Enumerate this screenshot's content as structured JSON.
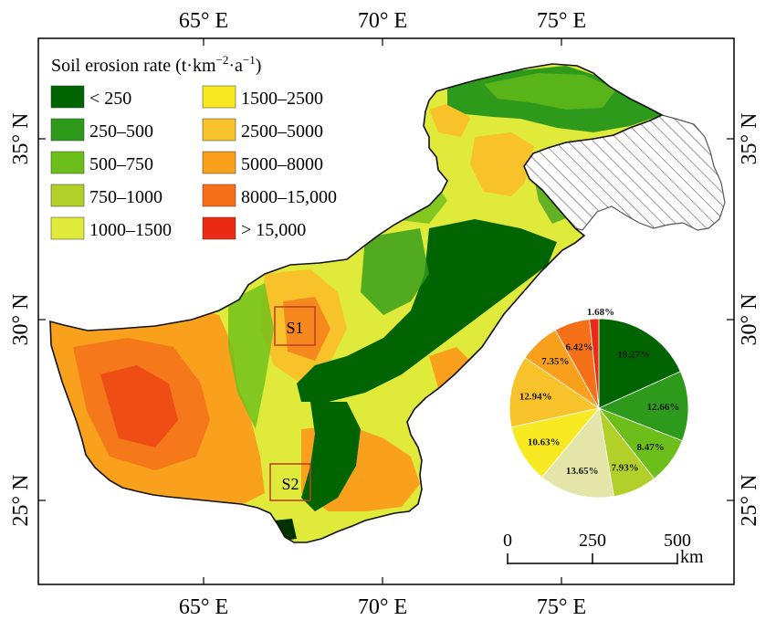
{
  "axes": {
    "top_ticks": [
      "65° E",
      "70° E",
      "75° E"
    ],
    "bottom_ticks": [
      "65° E",
      "70° E",
      "75° E"
    ],
    "left_ticks": [
      "35° N",
      "30° N",
      "25° N"
    ],
    "right_ticks": [
      "35° N",
      "30° N",
      "25° N"
    ]
  },
  "legend": {
    "title_prefix": "Soil erosion rate (t·km",
    "title_sup1": "−2",
    "title_mid": "·a",
    "title_sup2": "−1",
    "title_suffix": ")",
    "classes": [
      {
        "label": "< 250",
        "color": "#006400"
      },
      {
        "label": "250–500",
        "color": "#2e9a1c"
      },
      {
        "label": "500–750",
        "color": "#6cbf1a"
      },
      {
        "label": "750–1000",
        "color": "#b2cf2a"
      },
      {
        "label": "1000–1500",
        "color": "#e0ea3a"
      },
      {
        "label": "1500–2500",
        "color": "#f7ea23"
      },
      {
        "label": "2500–5000",
        "color": "#f8c22b"
      },
      {
        "label": "5000–8000",
        "color": "#f9a11c"
      },
      {
        "label": "8000–15,000",
        "color": "#f4711a"
      },
      {
        "label": "> 15,000",
        "color": "#ea2a14"
      }
    ]
  },
  "sites": [
    {
      "label": "S1"
    },
    {
      "label": "S2"
    }
  ],
  "pie": {
    "slices": [
      {
        "label": "18.27%",
        "value": 18.27,
        "color": "#006400"
      },
      {
        "label": "12.66%",
        "value": 12.66,
        "color": "#2e9a1c"
      },
      {
        "label": "8.47%",
        "value": 8.47,
        "color": "#6cbf1a"
      },
      {
        "label": "7.93%",
        "value": 7.93,
        "color": "#b2cf2a"
      },
      {
        "label": "13.65%",
        "value": 13.65,
        "color": "#e3e6a8"
      },
      {
        "label": "10.63%",
        "value": 10.63,
        "color": "#f7ea23"
      },
      {
        "label": "12.94%",
        "value": 12.94,
        "color": "#f8c22b"
      },
      {
        "label": "7.35%",
        "value": 7.35,
        "color": "#f9a11c"
      },
      {
        "label": "6.42%",
        "value": 6.42,
        "color": "#f4711a"
      },
      {
        "label": "1.68%",
        "value": 1.68,
        "color": "#ea2a14"
      }
    ]
  },
  "scale_bar": {
    "ticks": [
      "0",
      "250",
      "500"
    ],
    "unit": "km"
  }
}
